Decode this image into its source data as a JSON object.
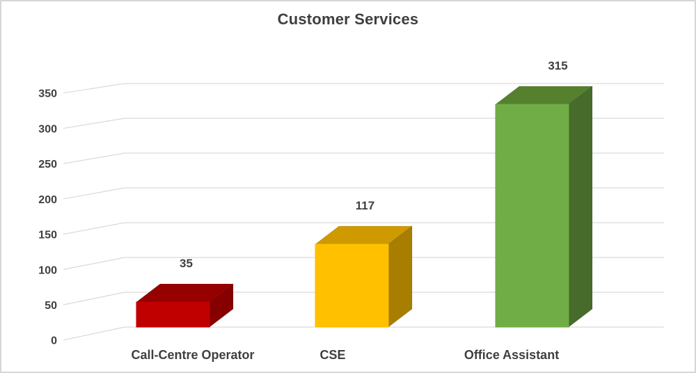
{
  "chart_data": {
    "type": "bar",
    "style": "3d-column",
    "title": "Customer Services",
    "categories": [
      "Call-Centre Operator",
      "CSE",
      "Office Assistant"
    ],
    "values": [
      35,
      117,
      315
    ],
    "data_labels": [
      "35",
      "117",
      "315"
    ],
    "series_colors": [
      {
        "front": "#C00000",
        "top": "#960000",
        "side": "#870000"
      },
      {
        "front": "#FFC000",
        "top": "#CE9A00",
        "side": "#A87E00"
      },
      {
        "front": "#70AD47",
        "top": "#55812F",
        "side": "#476B2A"
      }
    ],
    "xlabel": "",
    "ylabel": "",
    "yticks": [
      0,
      50,
      100,
      150,
      200,
      250,
      300,
      350
    ],
    "ylim": [
      0,
      350
    ],
    "grid": true,
    "legend": false,
    "text_color": "#3F3F3F",
    "gridline_color": "#D9D9D9",
    "background": "#FFFFFF"
  }
}
